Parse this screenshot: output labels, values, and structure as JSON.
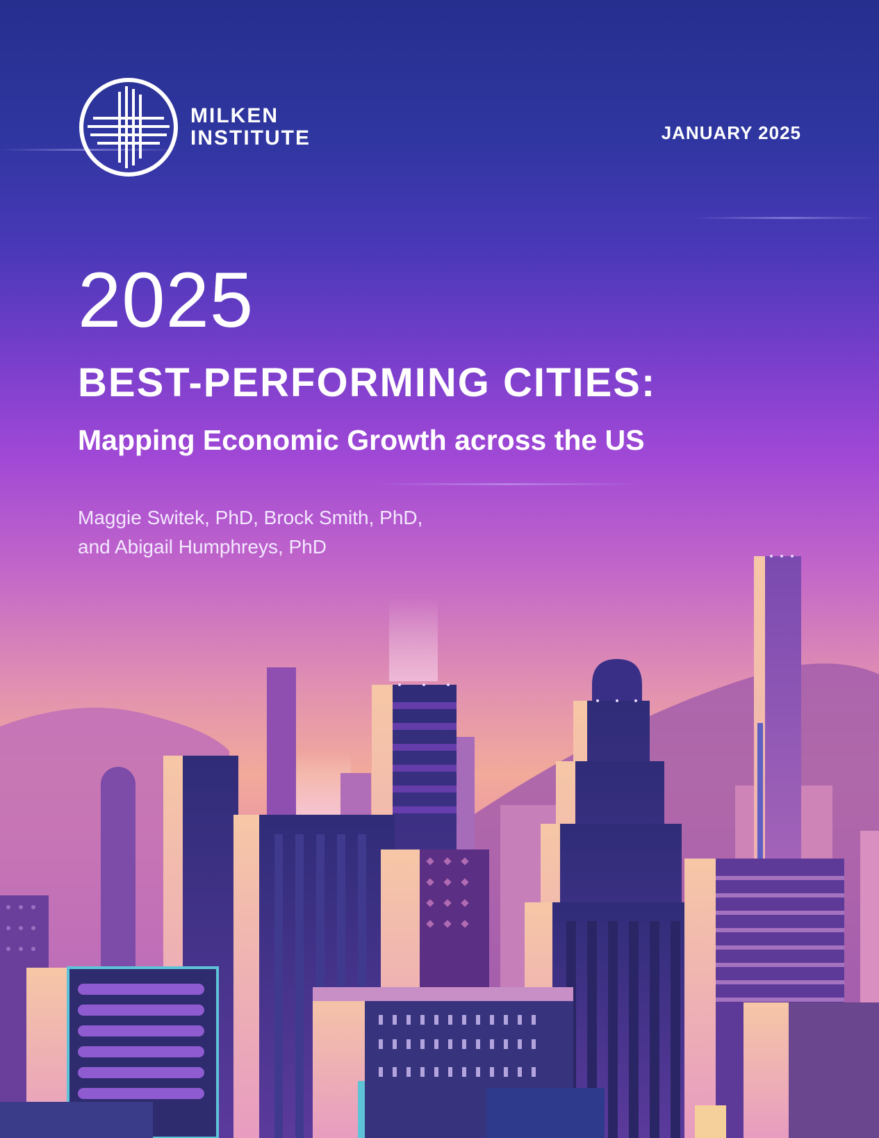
{
  "header": {
    "logo_line1": "MILKEN",
    "logo_line2": "INSTITUTE",
    "date": "JANUARY 2025"
  },
  "title": {
    "year": "2025",
    "headline": "BEST-PERFORMING CITIES:",
    "subtitle": "Mapping Economic Growth across the US"
  },
  "authors": {
    "line1": "Maggie Switek, PhD, Brock Smith, PhD,",
    "line2": "and Abigail Humphreys, PhD"
  },
  "colors": {
    "sky_top": "#262f8e",
    "sky_mid": "#a048d6",
    "horizon": "#f2aa9a",
    "building_dark": "#2c2a6e",
    "building_light": "#f5c6a8"
  },
  "icons": [
    "milken-institute-logo-icon"
  ]
}
